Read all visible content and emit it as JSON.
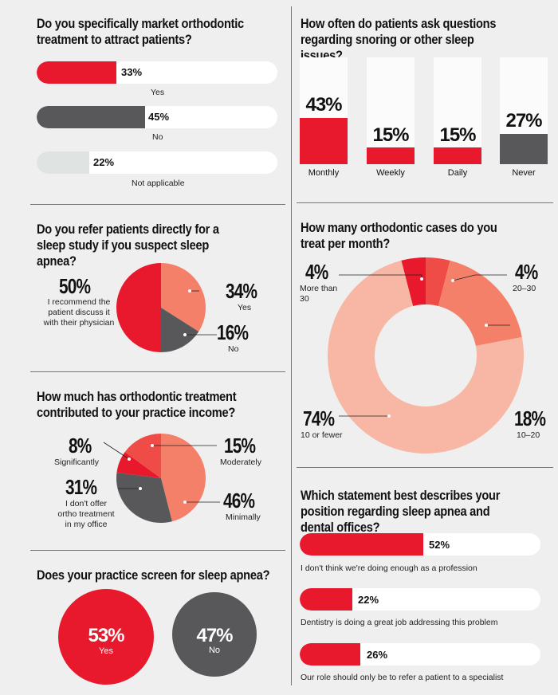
{
  "colors": {
    "red": "#e8192c",
    "dark": "#58585a",
    "light": "#dfe3e1",
    "salmon": "#f5806a",
    "pale": "#f7b7a4",
    "white": "#ffffff"
  },
  "chart_data": [
    {
      "type": "bar",
      "title": "Do you specifically market orthodontic treatment to attract patients?",
      "categories": [
        "Yes",
        "No",
        "Not applicable"
      ],
      "values": [
        33,
        45,
        22
      ],
      "value_labels": [
        "33%",
        "45%",
        "22%"
      ],
      "colors": [
        "#e8192c",
        "#58585a",
        "#dfe3e1"
      ]
    },
    {
      "type": "bar",
      "title": "How often do patients ask questions regarding snoring or other sleep issues?",
      "categories": [
        "Monthly",
        "Weekly",
        "Daily",
        "Never"
      ],
      "values": [
        43,
        15,
        15,
        27
      ],
      "value_labels": [
        "43%",
        "15%",
        "15%",
        "27%"
      ],
      "colors": [
        "#e8192c",
        "#e8192c",
        "#e8192c",
        "#58585a"
      ]
    },
    {
      "type": "pie",
      "title": "Do you refer patients directly for a sleep study if you suspect sleep apnea?",
      "slices": [
        {
          "label": "I recommend the patient discuss it with their physician",
          "value": 50,
          "pct": "50%",
          "color": "#e8192c"
        },
        {
          "label": "Yes",
          "value": 34,
          "pct": "34%",
          "color": "#f5806a"
        },
        {
          "label": "No",
          "value": 16,
          "pct": "16%",
          "color": "#58585a"
        }
      ]
    },
    {
      "type": "pie",
      "title": "How many orthodontic cases do you treat per month?",
      "donut": true,
      "slices": [
        {
          "label": "More than 30",
          "value": 4,
          "pct": "4%",
          "color": "#e8192c"
        },
        {
          "label": "20–30",
          "value": 4,
          "pct": "4%",
          "color": "#ef4c47"
        },
        {
          "label": "10–20",
          "value": 18,
          "pct": "18%",
          "color": "#f5806a"
        },
        {
          "label": "10 or fewer",
          "value": 74,
          "pct": "74%",
          "color": "#f7b7a4"
        }
      ]
    },
    {
      "type": "pie",
      "title": "How much has orthodontic treatment contributed to your practice income?",
      "slices": [
        {
          "label": "Minimally",
          "value": 46,
          "pct": "46%",
          "color": "#f5806a"
        },
        {
          "label": "I don't offer ortho treatment in my office",
          "value": 31,
          "pct": "31%",
          "color": "#58585a"
        },
        {
          "label": "Significantly",
          "value": 8,
          "pct": "8%",
          "color": "#e8192c"
        },
        {
          "label": "Moderately",
          "value": 15,
          "pct": "15%",
          "color": "#ef4c47"
        }
      ]
    },
    {
      "type": "bar",
      "title": "Which statement best describes your position regarding sleep apnea and dental offices?",
      "categories": [
        "I don't think we're doing enough as a profession",
        "Dentistry is doing a great job addressing this problem",
        "Our role should only be to refer a patient to a specialist"
      ],
      "values": [
        52,
        22,
        26
      ],
      "value_labels": [
        "52%",
        "22%",
        "26%"
      ],
      "colors": [
        "#e8192c",
        "#e8192c",
        "#e8192c"
      ]
    },
    {
      "type": "bar",
      "title": "Does your practice screen for sleep apnea?",
      "categories": [
        "Yes",
        "No"
      ],
      "values": [
        53,
        47
      ],
      "value_labels": [
        "53%",
        "47%"
      ],
      "colors": [
        "#e8192c",
        "#58585a"
      ]
    }
  ]
}
